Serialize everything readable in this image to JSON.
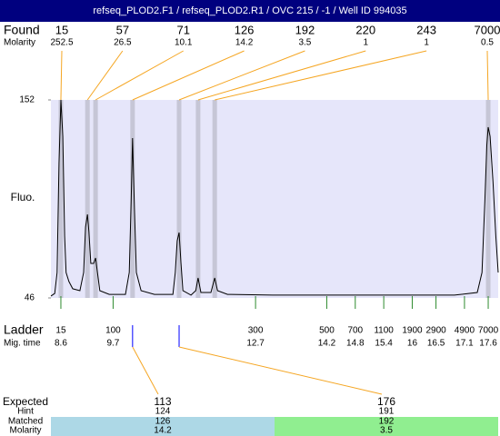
{
  "header": {
    "title": "refseq_PLOD2.F1 / refseq_PLOD2.R1 / OVC 215 / -1 / Well ID 994035"
  },
  "chart_data": {
    "type": "line",
    "ylabel": "Fluo.",
    "xlim": [
      8.39,
      17.81
    ],
    "ylim": [
      46,
      152
    ],
    "yticks": [
      46,
      152
    ],
    "found": {
      "label": "Found",
      "molarity_label": "Molarity",
      "sizes": [
        15,
        57,
        71,
        126,
        192,
        220,
        243,
        7000
      ],
      "molarity": [
        252.5,
        26.5,
        10.1,
        14.2,
        3.5,
        1,
        1,
        0.5
      ],
      "times": [
        8.6,
        9.16,
        9.33,
        10.11,
        11.09,
        11.49,
        11.84,
        17.6
      ],
      "line_color": "#f5a623",
      "band_color": "#c6c6d6"
    },
    "ladder": {
      "label": "Ladder",
      "time_label": "Mig. time",
      "sizes": [
        15,
        100,
        300,
        500,
        700,
        1100,
        1900,
        2900,
        4900,
        7000
      ],
      "times": [
        8.6,
        9.7,
        12.7,
        14.2,
        14.8,
        15.4,
        16,
        16.5,
        17.1,
        17.6
      ],
      "color": "#2e8b2e"
    },
    "trace": {
      "color": "#000000",
      "x": [
        8.39,
        8.47,
        8.52,
        8.56,
        8.6,
        8.64,
        8.68,
        8.71,
        8.77,
        8.85,
        9.0,
        9.08,
        9.12,
        9.16,
        9.19,
        9.23,
        9.29,
        9.33,
        9.37,
        9.42,
        9.62,
        9.96,
        10.04,
        10.08,
        10.11,
        10.15,
        10.19,
        10.29,
        10.57,
        10.96,
        11.01,
        11.05,
        11.09,
        11.13,
        11.17,
        11.34,
        11.44,
        11.49,
        11.55,
        11.76,
        11.84,
        11.9,
        12.11,
        13.06,
        14.98,
        16.89,
        17.37,
        17.47,
        17.53,
        17.57,
        17.6,
        17.64,
        17.7,
        17.76,
        17.81
      ],
      "values": [
        47.0,
        48.4,
        59.6,
        118.0,
        152.0,
        132.5,
        79.1,
        59.6,
        54.8,
        50.9,
        49.9,
        59.6,
        83.9,
        90.7,
        81.5,
        64.5,
        64.5,
        67.4,
        59.6,
        49.9,
        47.9,
        47.9,
        59.6,
        98.5,
        131.6,
        93.6,
        59.6,
        49.9,
        47.9,
        47.9,
        59.6,
        76.6,
        81.0,
        64.5,
        49.9,
        47.5,
        49.9,
        56.7,
        48.9,
        48.9,
        56.7,
        49.9,
        47.9,
        47.5,
        47.5,
        47.5,
        48.9,
        59.6,
        98.5,
        127.7,
        137.4,
        132.5,
        108.2,
        79.1,
        59.6
      ]
    },
    "expected": {
      "labels": [
        "Expected",
        "Hint",
        "Matched",
        "Molarity"
      ],
      "marker_color": "#0000ff",
      "columns": [
        {
          "expected": 113,
          "hint": 124,
          "matched": 126,
          "molarity": 14.2,
          "color": "#add8e6"
        },
        {
          "expected": 176,
          "hint": 191,
          "matched": 192,
          "molarity": 3.5,
          "color": "#90ee90"
        }
      ]
    }
  }
}
